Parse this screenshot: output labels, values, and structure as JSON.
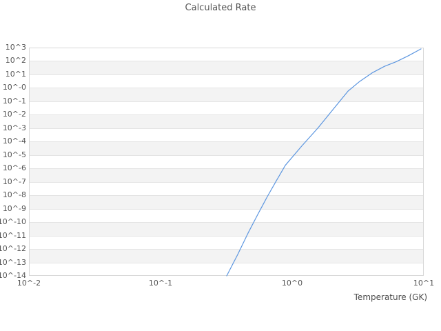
{
  "title": "Calculated Rate",
  "x_axis_label": "Temperature (GK)",
  "colors": {
    "line": "#5c96e0",
    "band_gray": "#f3f3f3",
    "grid_line": "#e4e4e4",
    "plot_border": "#d8d8d8",
    "text": "#545454"
  },
  "axes": {
    "x_min_exp": -2,
    "x_max_exp": 1,
    "y_min_exp": -14,
    "y_max_exp": 3,
    "x_ticks": [
      {
        "label": "10^-2",
        "exp": -2
      },
      {
        "label": "10^-1",
        "exp": -1
      },
      {
        "label": "10^0",
        "exp": 0
      },
      {
        "label": "10^1",
        "exp": 1
      }
    ],
    "y_ticks": [
      {
        "label": "10^3",
        "exp": 3
      },
      {
        "label": "10^2",
        "exp": 2
      },
      {
        "label": "10^1",
        "exp": 1
      },
      {
        "label": "10^-0",
        "exp": 0
      },
      {
        "label": "10^-1",
        "exp": -1
      },
      {
        "label": "10^-2",
        "exp": -2
      },
      {
        "label": "10^-3",
        "exp": -3
      },
      {
        "label": "10^-4",
        "exp": -4
      },
      {
        "label": "10^-5",
        "exp": -5
      },
      {
        "label": "10^-6",
        "exp": -6
      },
      {
        "label": "10^-7",
        "exp": -7
      },
      {
        "label": "10^-8",
        "exp": -8
      },
      {
        "label": "10^-9",
        "exp": -9
      },
      {
        "label": "10^-10",
        "exp": -10
      },
      {
        "label": "10^-11",
        "exp": -11
      },
      {
        "label": "10^-12",
        "exp": -12
      },
      {
        "label": "10^-13",
        "exp": -13
      },
      {
        "label": "10^-14",
        "exp": -14
      }
    ]
  },
  "chart_data": {
    "type": "line",
    "title": "Calculated Rate",
    "xlabel": "Temperature (GK)",
    "ylabel": "",
    "xscale": "log",
    "yscale": "log",
    "xlim": [
      0.01,
      10
    ],
    "ylim": [
      1e-14,
      1000.0
    ],
    "x_tick_labels": [
      "10^-2",
      "10^-1",
      "10^0",
      "10^1"
    ],
    "y_tick_labels": [
      "10^3",
      "10^2",
      "10^1",
      "10^-0",
      "10^-1",
      "10^-2",
      "10^-3",
      "10^-4",
      "10^-5",
      "10^-6",
      "10^-7",
      "10^-8",
      "10^-9",
      "10^-10",
      "10^-11",
      "10^-12",
      "10^-13",
      "10^-14"
    ],
    "grid": "horizontal-alternating-bands",
    "legend": "none",
    "series": [
      {
        "name": "Calculated Rate",
        "x": [
          0.318,
          0.386,
          0.462,
          0.547,
          0.648,
          0.758,
          0.887,
          1.18,
          1.58,
          2.06,
          2.66,
          3.26,
          4.05,
          5.03,
          6.18,
          7.67,
          9.53
        ],
        "y": [
          1e-14,
          3.9e-13,
          1.5e-11,
          3.7e-10,
          8.1e-09,
          1.2e-07,
          1.7e-06,
          4.5e-05,
          0.0011,
          0.027,
          0.58,
          3.0,
          13,
          40,
          90,
          250,
          800
        ]
      }
    ]
  }
}
